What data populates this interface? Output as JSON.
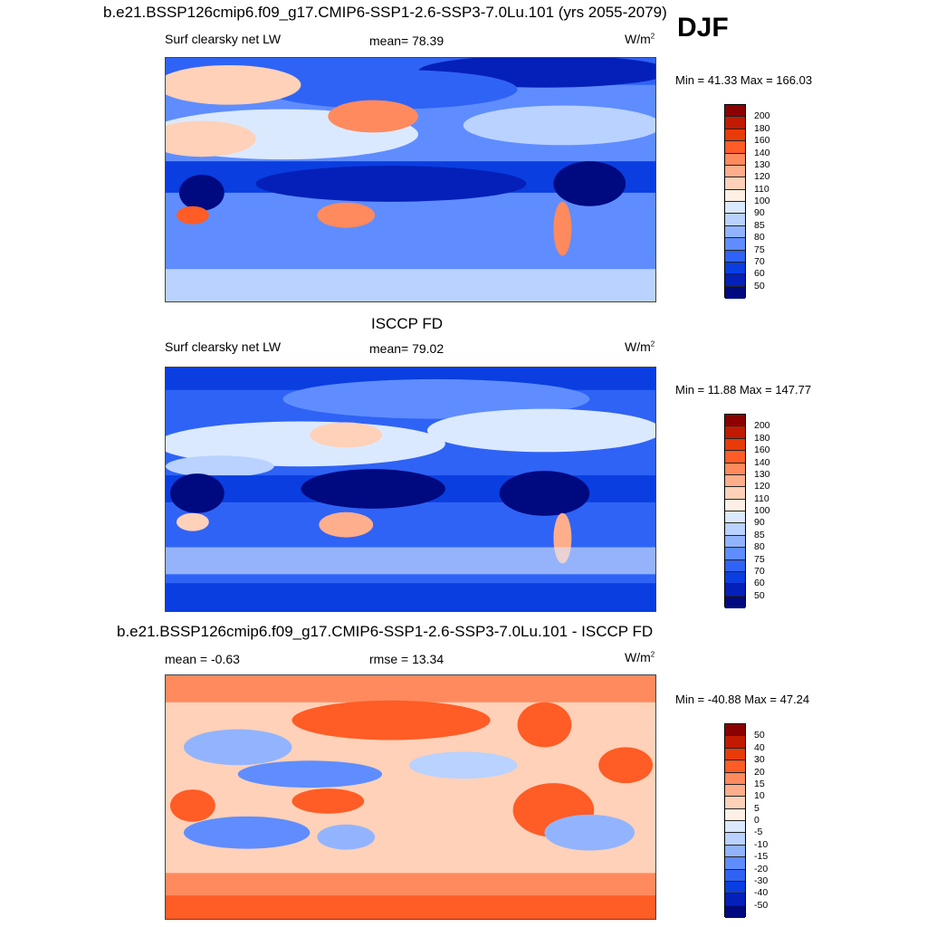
{
  "season": "DJF",
  "panels": [
    {
      "title": "b.e21.BSSP126cmip6.f09_g17.CMIP6-SSP1-2.6-SSP3-7.0Lu.101 (yrs 2055-2079)",
      "left_label": "Surf clearsky net LW",
      "center_label": "mean=  78.39",
      "units": "W/m",
      "units_sup": "2",
      "minmax": "Min =  41.33 Max = 166.03",
      "colorbar_labels": [
        "200",
        "180",
        "160",
        "140",
        "130",
        "120",
        "110",
        "100",
        "90",
        "85",
        "80",
        "75",
        "70",
        "60",
        "50"
      ],
      "colors": [
        "#8b0000",
        "#c21a00",
        "#e83b0a",
        "#ff5c26",
        "#ff8a5e",
        "#ffae8c",
        "#ffd1b8",
        "#fff0e6",
        "#dbe9ff",
        "#b9d2ff",
        "#92b4ff",
        "#5f8dff",
        "#2f63f5",
        "#0a3ee0",
        "#0520b8",
        "#000a80"
      ]
    },
    {
      "title": "ISCCP FD",
      "left_label": "Surf clearsky net LW",
      "center_label": "mean=  79.02",
      "units": "W/m",
      "units_sup": "2",
      "minmax": "Min =  11.88 Max = 147.77",
      "colorbar_labels": [
        "200",
        "180",
        "160",
        "140",
        "130",
        "120",
        "110",
        "100",
        "90",
        "85",
        "80",
        "75",
        "70",
        "60",
        "50"
      ],
      "colors": [
        "#8b0000",
        "#c21a00",
        "#e83b0a",
        "#ff5c26",
        "#ff8a5e",
        "#ffae8c",
        "#ffd1b8",
        "#fff0e6",
        "#dbe9ff",
        "#b9d2ff",
        "#92b4ff",
        "#5f8dff",
        "#2f63f5",
        "#0a3ee0",
        "#0520b8",
        "#000a80"
      ]
    },
    {
      "title": "b.e21.BSSP126cmip6.f09_g17.CMIP6-SSP1-2.6-SSP3-7.0Lu.101 - ISCCP FD",
      "left_label": "mean =  -0.63",
      "center_label": "rmse =  13.34",
      "units": "W/m",
      "units_sup": "2",
      "minmax": "Min = -40.88 Max =  47.24",
      "colorbar_labels": [
        "50",
        "40",
        "30",
        "20",
        "15",
        "10",
        "5",
        "0",
        "-5",
        "-10",
        "-15",
        "-20",
        "-30",
        "-40",
        "-50"
      ],
      "colors": [
        "#8b0000",
        "#c21a00",
        "#e83b0a",
        "#ff5c26",
        "#ff8a5e",
        "#ffae8c",
        "#ffd1b8",
        "#fff0e6",
        "#dbe9ff",
        "#b9d2ff",
        "#92b4ff",
        "#5f8dff",
        "#2f63f5",
        "#0a3ee0",
        "#0520b8",
        "#000a80"
      ]
    }
  ]
}
